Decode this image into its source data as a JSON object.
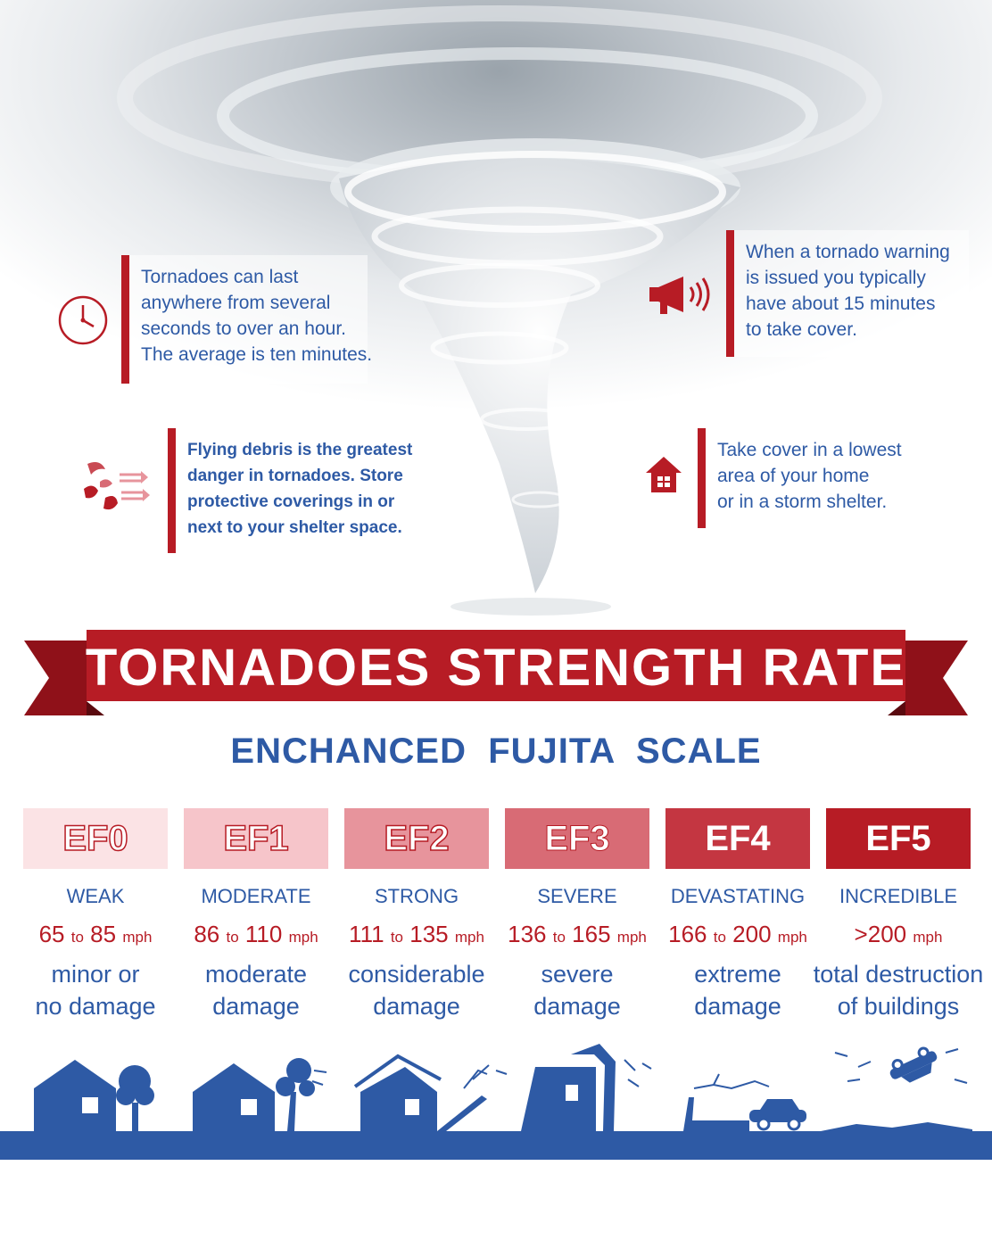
{
  "notes": [
    {
      "id": "duration",
      "text": "Tornadoes can last\nanywhere from several\nseconds to over an hour.\nThe average is ten minutes.",
      "icon": "clock-icon"
    },
    {
      "id": "warning",
      "text": "When a tornado warning\nis issued you typically\nhave about 15 minutes\nto take cover.",
      "icon": "megaphone-icon"
    },
    {
      "id": "debris",
      "text": "Flying debris is the greatest\ndanger in tornadoes. Store\nprotective coverings in or\nnext to your shelter space.",
      "icon": "debris-icon"
    },
    {
      "id": "cover",
      "text": "Take cover in a lowest\narea of your home\nor in a storm shelter.",
      "icon": "house-icon"
    }
  ],
  "title": "TORNADOES STRENGTH RATE",
  "subtitle": "ENCHANCED  FUJITA  SCALE",
  "scale": [
    {
      "code": "EF0",
      "category": "WEAK",
      "speed_from": "65",
      "speed_to": "85",
      "unit": "mph",
      "damage_1": "minor or",
      "damage_2": "no damage",
      "color": "#fbe3e5"
    },
    {
      "code": "EF1",
      "category": "MODERATE",
      "speed_from": "86",
      "speed_to": "110",
      "unit": "mph",
      "damage_1": "moderate",
      "damage_2": "damage",
      "color": "#f6c5ca"
    },
    {
      "code": "EF2",
      "category": "STRONG",
      "speed_from": "111",
      "speed_to": "135",
      "unit": "mph",
      "damage_1": "considerable",
      "damage_2": "damage",
      "color": "#e7949c"
    },
    {
      "code": "EF3",
      "category": "SEVERE",
      "speed_from": "136",
      "speed_to": "165",
      "unit": "mph",
      "damage_1": "severe",
      "damage_2": "damage",
      "color": "#d86b75"
    },
    {
      "code": "EF4",
      "category": "DEVASTATING",
      "speed_from": "166",
      "speed_to": "200",
      "unit": "mph",
      "damage_1": "extreme",
      "damage_2": "damage",
      "color": "#c43641"
    },
    {
      "code": "EF5",
      "category": "INCREDIBLE",
      "speed_from": ">200",
      "speed_to": "",
      "unit": "mph",
      "damage_1": "total destruction",
      "damage_2": "of buildings",
      "color": "#b71c25"
    }
  ],
  "connector": "to",
  "colors": {
    "red": "#b71c25",
    "blue": "#2e5aa5"
  }
}
